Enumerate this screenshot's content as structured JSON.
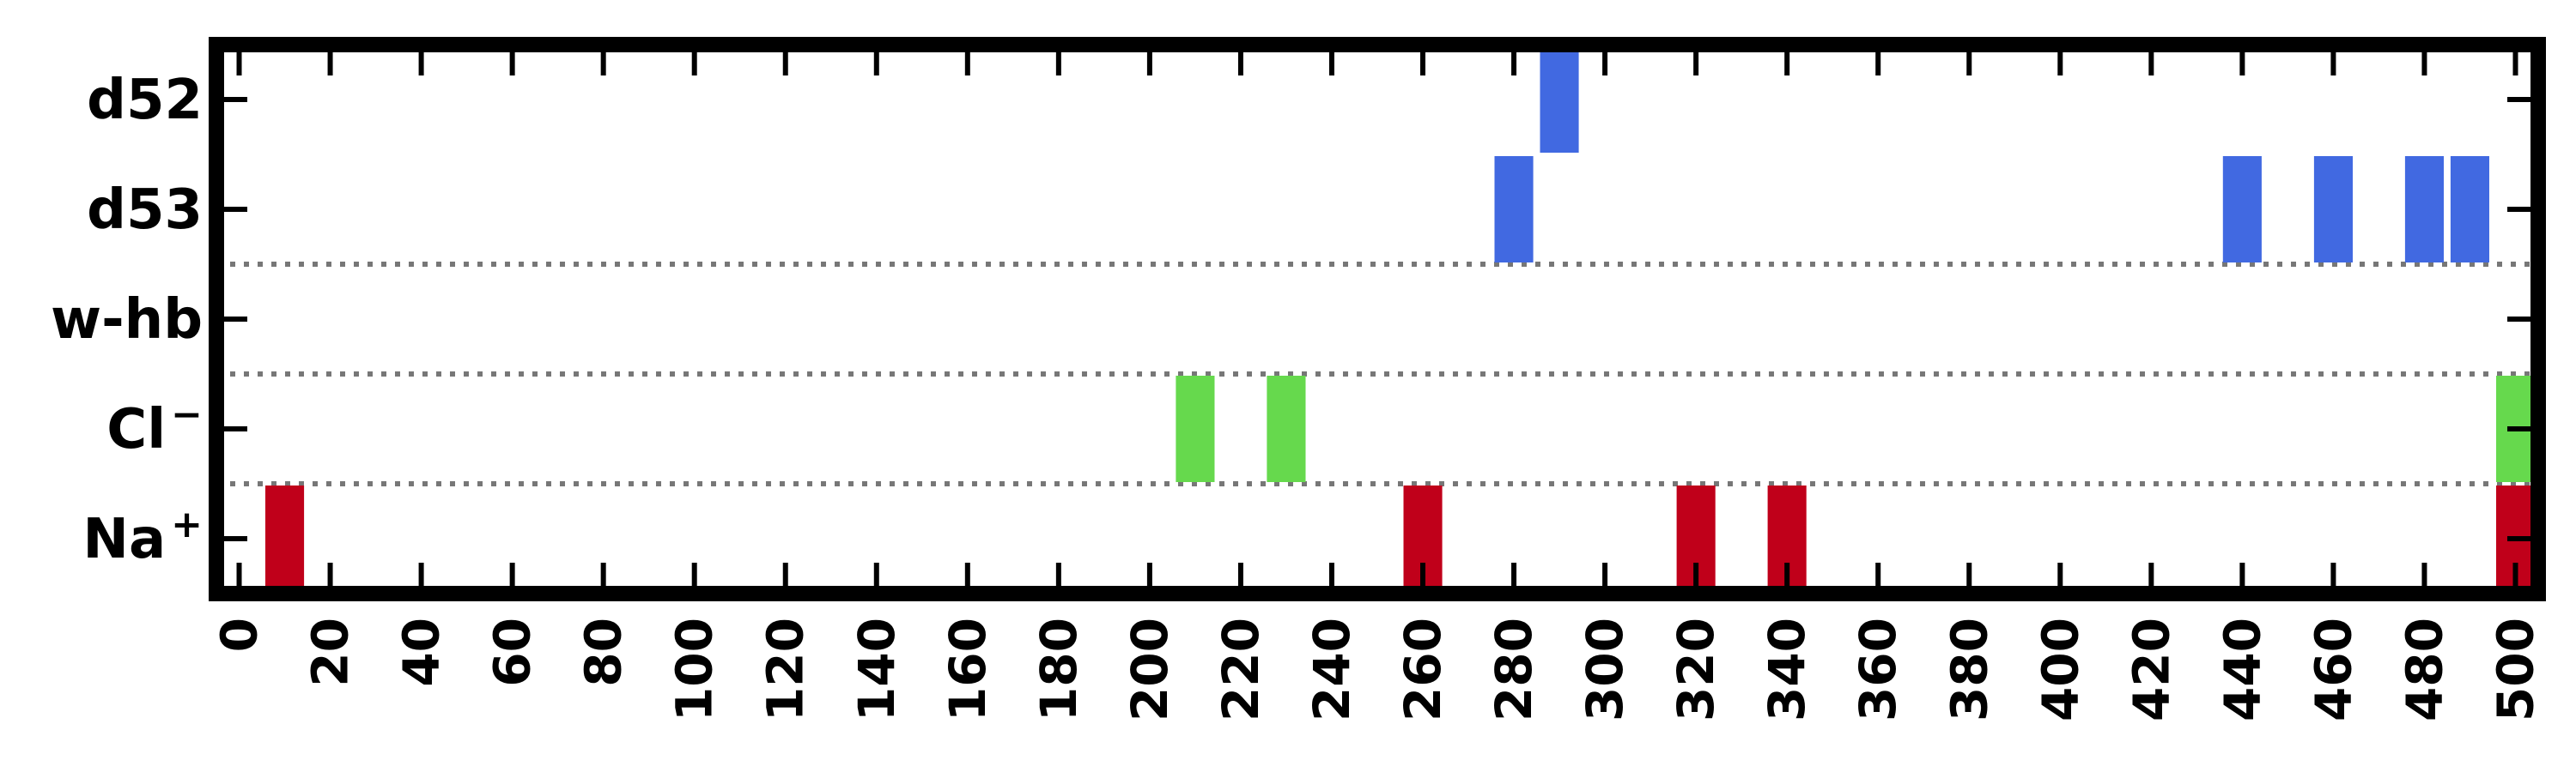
{
  "chart_data": {
    "type": "event-raster",
    "title": "",
    "xlabel": "",
    "ylabel": "",
    "xlim": [
      -5,
      505
    ],
    "x_ticks": [
      0,
      20,
      40,
      60,
      80,
      100,
      120,
      140,
      160,
      180,
      200,
      220,
      240,
      260,
      280,
      300,
      320,
      340,
      360,
      380,
      400,
      420,
      440,
      460,
      480,
      500
    ],
    "x_tick_labels": [
      "0",
      "20",
      "40",
      "60",
      "80",
      "100",
      "120",
      "140",
      "160",
      "180",
      "200",
      "220",
      "240",
      "260",
      "280",
      "300",
      "320",
      "340",
      "360",
      "380",
      "400",
      "420",
      "440",
      "460",
      "480",
      "500"
    ],
    "rows": [
      {
        "label": "d52",
        "label_base": "d52",
        "label_sup": "",
        "color": "#4169e1",
        "events": [
          290
        ]
      },
      {
        "label": "d53",
        "label_base": "d53",
        "label_sup": "",
        "color": "#4169e1",
        "events": [
          280,
          440,
          460,
          480,
          490
        ]
      },
      {
        "label": "w-hb",
        "label_base": "w-hb",
        "label_sup": "",
        "color": "#4169e1",
        "events": []
      },
      {
        "label": "Cl−",
        "label_base": "Cl",
        "label_sup": "−",
        "color": "#66d94d",
        "events": [
          210,
          230,
          500
        ]
      },
      {
        "label": "Na+",
        "label_base": "Na",
        "label_sup": "+",
        "color": "#c0001a",
        "events": [
          10,
          260,
          320,
          340,
          500
        ]
      }
    ],
    "group_separators_after_rows": [
      "d53",
      "w-hb",
      "Cl−"
    ],
    "grid": false,
    "legend": "none"
  }
}
